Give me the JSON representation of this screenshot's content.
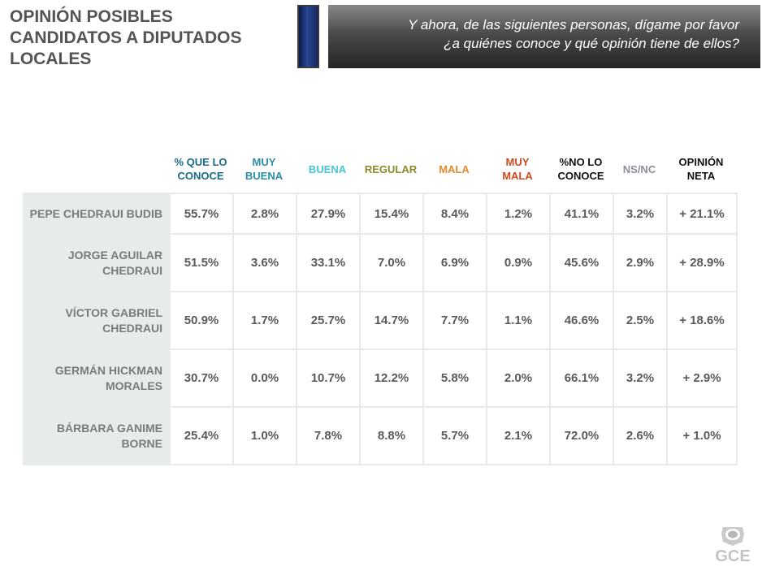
{
  "title": {
    "line1": "OPINIÓN POSIBLES",
    "line2": "CANDIDATOS A DIPUTADOS",
    "line3": "LOCALES"
  },
  "question": {
    "line1": "Y ahora, de las siguientes personas, dígame por favor",
    "line2": "¿a quiénes conoce y qué opinión tiene de ellos?"
  },
  "columns": [
    {
      "line1": "% QUE LO",
      "line2": "CONOCE",
      "color": "#1a6b8a"
    },
    {
      "line1": "MUY",
      "line2": "BUENA",
      "color": "#2b8fa8"
    },
    {
      "line1": "BUENA",
      "line2": "",
      "color": "#47c6d6"
    },
    {
      "line1": "REGULAR",
      "line2": "",
      "color": "#8a8a2a"
    },
    {
      "line1": "MALA",
      "line2": "",
      "color": "#e58a2a"
    },
    {
      "line1": "MUY",
      "line2": "MALA",
      "color": "#d14a1c"
    },
    {
      "line1": "%NO LO",
      "line2": "CONOCE",
      "color": "#111111"
    },
    {
      "line1": "NS/NC",
      "line2": "",
      "color": "#8a8f95"
    },
    {
      "line1": "OPINIÓN",
      "line2": "NETA",
      "color": "#111111"
    }
  ],
  "rows": [
    {
      "name1": "PEPE CHEDRAUI BUDIB",
      "name2": "",
      "values": [
        "55.7%",
        "2.8%",
        "27.9%",
        "15.4%",
        "8.4%",
        "1.2%",
        "41.1%",
        "3.2%",
        "+ 21.1%"
      ]
    },
    {
      "name1": "JORGE AGUILAR",
      "name2": "CHEDRAUI",
      "values": [
        "51.5%",
        "3.6%",
        "33.1%",
        "7.0%",
        "6.9%",
        "0.9%",
        "45.6%",
        "2.9%",
        "+ 28.9%"
      ]
    },
    {
      "name1": "VÍCTOR GABRIEL",
      "name2": "CHEDRAUI",
      "values": [
        "50.9%",
        "1.7%",
        "25.7%",
        "14.7%",
        "7.7%",
        "1.1%",
        "46.6%",
        "2.5%",
        "+ 18.6%"
      ]
    },
    {
      "name1": "GERMÁN HICKMAN",
      "name2": "MORALES",
      "values": [
        "30.7%",
        "0.0%",
        "10.7%",
        "12.2%",
        "5.8%",
        "2.0%",
        "66.1%",
        "3.2%",
        "+ 2.9%"
      ]
    },
    {
      "name1": "BÁRBARA GANIME",
      "name2": "BORNE",
      "values": [
        "25.4%",
        "1.0%",
        "7.8%",
        "8.8%",
        "5.7%",
        "2.1%",
        "72.0%",
        "2.6%",
        "+ 1.0%"
      ]
    }
  ],
  "logo": {
    "text": "GCE",
    "icon": "shield-emblem-icon"
  }
}
